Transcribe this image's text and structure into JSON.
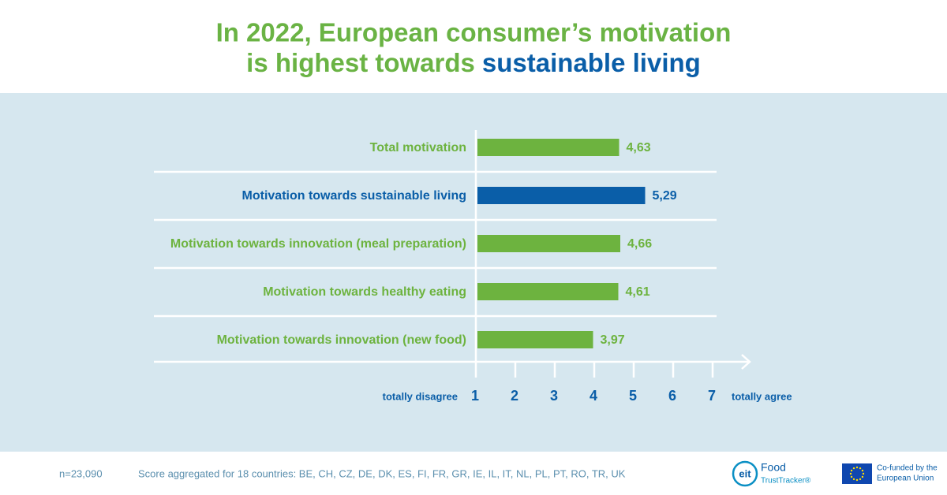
{
  "chart_data": {
    "type": "bar",
    "orientation": "horizontal",
    "title_parts": [
      "In 2022, European consumer’s motivation",
      "is highest towards",
      "sustainable living"
    ],
    "categories": [
      "Total motivation",
      "Motivation towards sustainable living",
      "Motivation towards innovation (meal preparation)",
      "Motivation towards healthy eating",
      "Motivation towards innovation (new food)"
    ],
    "values": [
      4.63,
      5.29,
      4.66,
      4.61,
      3.97
    ],
    "value_labels": [
      "4,63",
      "5,29",
      "4,66",
      "4,61",
      "3,97"
    ],
    "colors": [
      "#6db33f",
      "#0a5ea8",
      "#6db33f",
      "#6db33f",
      "#6db33f"
    ],
    "xlim": [
      1,
      7
    ],
    "xticks": [
      1,
      2,
      3,
      4,
      5,
      6,
      7
    ],
    "xlabel_left": "totally disagree",
    "xlabel_right": "totally agree"
  },
  "footer": {
    "sample": "n=23,090",
    "note": "Score aggregated for 18 countries: BE, CH, CZ, DE, DK, ES, FI, FR, GR, IE, IL, IT, NL, PL, PT, RO, TR, UK",
    "logo_text": [
      "eit",
      "Food",
      "TrustTracker®"
    ],
    "eu_text": [
      "Co-funded by the",
      "European Union"
    ]
  }
}
